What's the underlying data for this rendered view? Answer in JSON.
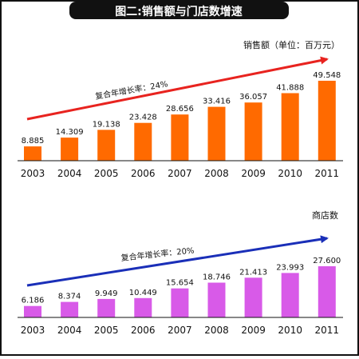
{
  "title": "图二:销售额与门店数增速",
  "charts": [
    {
      "id": "sales",
      "type": "bar",
      "unit_label": "销售额（单位：百万元）",
      "growth_label": "复合年增长率：24%",
      "bar_color": "#ff6a00",
      "arrow_color": "#e8231f",
      "categories": [
        "2003",
        "2004",
        "2005",
        "2006",
        "2007",
        "2008",
        "2009",
        "2010",
        "2011"
      ],
      "values": [
        8.885,
        14.309,
        19.138,
        23.428,
        28.656,
        33.416,
        36.057,
        41.888,
        49.548
      ],
      "value_labels": [
        "8.885",
        "14.309",
        "19.138",
        "23.428",
        "28.656",
        "33.416",
        "36.057",
        "41.888",
        "49.548"
      ]
    },
    {
      "id": "stores",
      "type": "bar",
      "unit_label": "商店数",
      "growth_label": "复合年增长率：20%",
      "bar_color": "#d85ae8",
      "arrow_color": "#1a2fb8",
      "categories": [
        "2003",
        "2004",
        "2005",
        "2006",
        "2007",
        "2008",
        "2009",
        "2010",
        "2011"
      ],
      "values": [
        6.186,
        8.374,
        9.949,
        10.449,
        15.654,
        18.746,
        21.413,
        23.993,
        27.6
      ],
      "value_labels": [
        "6.186",
        "8.374",
        "9.949",
        "10.449",
        "15.654",
        "18.746",
        "21.413",
        "23.993",
        "27.600"
      ]
    }
  ]
}
